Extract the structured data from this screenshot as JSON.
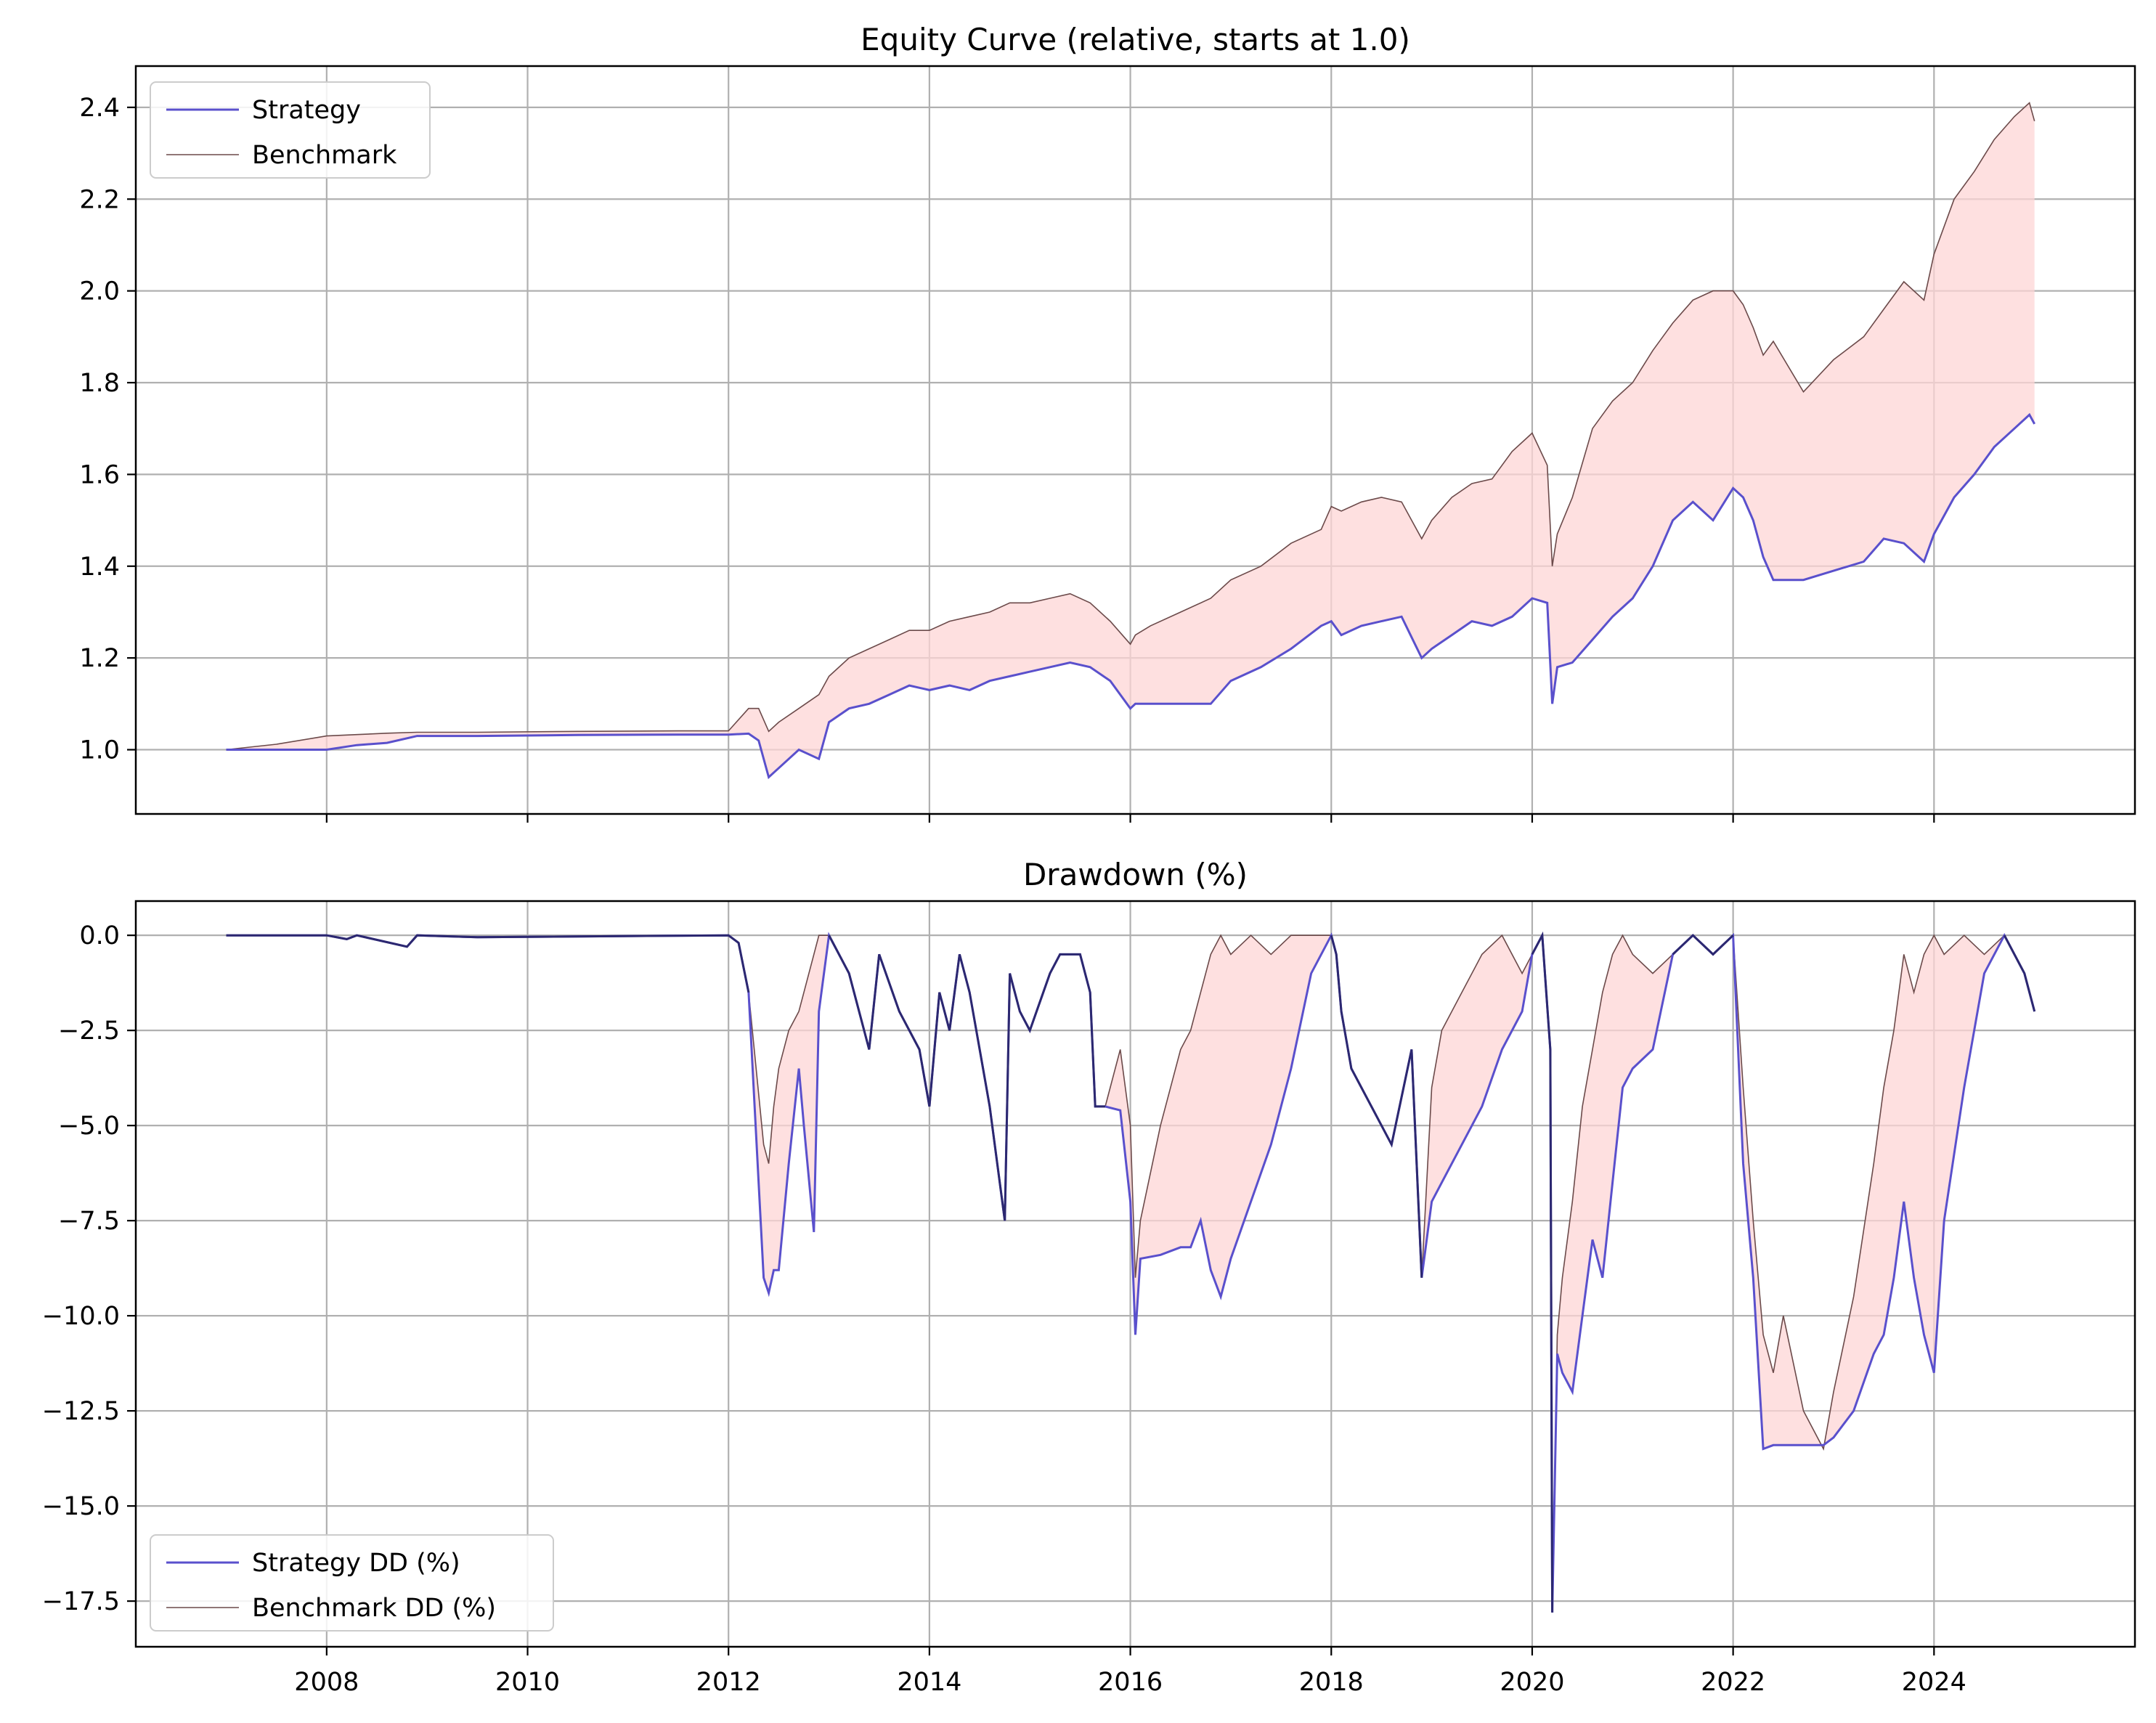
{
  "chart_data": [
    {
      "type": "line",
      "title": "Equity Curve (relative, starts at 1.0)",
      "xlabel": "",
      "ylabel": "",
      "xlim": [
        2006.1,
        2026.0
      ],
      "ylim": [
        0.86,
        2.49
      ],
      "x_ticks": [
        2008,
        2010,
        2012,
        2014,
        2016,
        2018,
        2020,
        2022,
        2024
      ],
      "y_ticks": [
        1.0,
        1.2,
        1.4,
        1.6,
        1.8,
        2.0,
        2.2,
        2.4
      ],
      "y_tick_labels": [
        "1.0",
        "1.2",
        "1.4",
        "1.6",
        "1.8",
        "2.0",
        "2.2",
        "2.4"
      ],
      "grid": true,
      "legend": "upper left",
      "fill_between": {
        "color": "#fdd5d6"
      },
      "series": [
        {
          "name": "Strategy",
          "color": "#5a50cc",
          "x": [
            2007.0,
            2007.5,
            2008.0,
            2008.3,
            2008.6,
            2008.9,
            2009.5,
            2010.5,
            2011.5,
            2012.0,
            2012.2,
            2012.3,
            2012.4,
            2012.5,
            2012.7,
            2012.9,
            2013.0,
            2013.2,
            2013.4,
            2013.6,
            2013.8,
            2014.0,
            2014.2,
            2014.4,
            2014.6,
            2014.8,
            2015.0,
            2015.2,
            2015.4,
            2015.6,
            2015.8,
            2016.0,
            2016.05,
            2016.2,
            2016.5,
            2016.8,
            2017.0,
            2017.3,
            2017.6,
            2017.9,
            2018.0,
            2018.1,
            2018.3,
            2018.5,
            2018.7,
            2018.9,
            2019.0,
            2019.2,
            2019.4,
            2019.6,
            2019.8,
            2020.0,
            2020.15,
            2020.2,
            2020.25,
            2020.4,
            2020.6,
            2020.8,
            2021.0,
            2021.2,
            2021.4,
            2021.6,
            2021.8,
            2022.0,
            2022.1,
            2022.2,
            2022.3,
            2022.4,
            2022.7,
            2023.0,
            2023.3,
            2023.5,
            2023.7,
            2023.9,
            2024.0,
            2024.2,
            2024.4,
            2024.6,
            2024.8,
            2024.95,
            2025.0
          ],
          "y": [
            1.0,
            1.0,
            1.0,
            1.01,
            1.015,
            1.03,
            1.03,
            1.032,
            1.033,
            1.033,
            1.035,
            1.02,
            0.94,
            0.96,
            1.0,
            0.98,
            1.06,
            1.09,
            1.1,
            1.12,
            1.14,
            1.13,
            1.14,
            1.13,
            1.15,
            1.16,
            1.17,
            1.18,
            1.19,
            1.18,
            1.15,
            1.09,
            1.1,
            1.1,
            1.1,
            1.1,
            1.15,
            1.18,
            1.22,
            1.27,
            1.28,
            1.25,
            1.27,
            1.28,
            1.29,
            1.2,
            1.22,
            1.25,
            1.28,
            1.27,
            1.29,
            1.33,
            1.32,
            1.1,
            1.18,
            1.19,
            1.24,
            1.29,
            1.33,
            1.4,
            1.5,
            1.54,
            1.5,
            1.57,
            1.55,
            1.5,
            1.42,
            1.37,
            1.37,
            1.39,
            1.41,
            1.46,
            1.45,
            1.41,
            1.47,
            1.55,
            1.6,
            1.66,
            1.7,
            1.73,
            1.71
          ]
        },
        {
          "name": "Benchmark",
          "color": "#6b4a4a",
          "x": [
            2007.0,
            2007.5,
            2008.0,
            2008.3,
            2008.6,
            2008.9,
            2009.5,
            2010.5,
            2011.5,
            2012.0,
            2012.2,
            2012.3,
            2012.4,
            2012.5,
            2012.7,
            2012.9,
            2013.0,
            2013.2,
            2013.4,
            2013.6,
            2013.8,
            2014.0,
            2014.2,
            2014.4,
            2014.6,
            2014.8,
            2015.0,
            2015.2,
            2015.4,
            2015.6,
            2015.8,
            2016.0,
            2016.05,
            2016.2,
            2016.5,
            2016.8,
            2017.0,
            2017.3,
            2017.6,
            2017.9,
            2018.0,
            2018.1,
            2018.3,
            2018.5,
            2018.7,
            2018.9,
            2019.0,
            2019.2,
            2019.4,
            2019.6,
            2019.8,
            2020.0,
            2020.15,
            2020.2,
            2020.25,
            2020.4,
            2020.6,
            2020.8,
            2021.0,
            2021.2,
            2021.4,
            2021.6,
            2021.8,
            2022.0,
            2022.1,
            2022.2,
            2022.3,
            2022.4,
            2022.7,
            2023.0,
            2023.3,
            2023.5,
            2023.7,
            2023.9,
            2024.0,
            2024.2,
            2024.4,
            2024.6,
            2024.8,
            2024.95,
            2025.0
          ],
          "y": [
            1.0,
            1.012,
            1.03,
            1.033,
            1.036,
            1.038,
            1.038,
            1.04,
            1.041,
            1.041,
            1.09,
            1.09,
            1.04,
            1.06,
            1.09,
            1.12,
            1.16,
            1.2,
            1.22,
            1.24,
            1.26,
            1.26,
            1.28,
            1.29,
            1.3,
            1.32,
            1.32,
            1.33,
            1.34,
            1.32,
            1.28,
            1.23,
            1.25,
            1.27,
            1.3,
            1.33,
            1.37,
            1.4,
            1.45,
            1.48,
            1.53,
            1.52,
            1.54,
            1.55,
            1.54,
            1.46,
            1.5,
            1.55,
            1.58,
            1.59,
            1.65,
            1.69,
            1.62,
            1.4,
            1.47,
            1.55,
            1.7,
            1.76,
            1.8,
            1.87,
            1.93,
            1.98,
            2.0,
            2.0,
            1.97,
            1.92,
            1.86,
            1.89,
            1.78,
            1.85,
            1.9,
            1.96,
            2.02,
            1.98,
            2.08,
            2.2,
            2.26,
            2.33,
            2.38,
            2.41,
            2.37
          ]
        }
      ]
    },
    {
      "type": "line",
      "title": "Drawdown (%)",
      "xlabel": "",
      "ylabel": "",
      "xlim": [
        2006.1,
        2026.0
      ],
      "ylim": [
        -18.7,
        0.9
      ],
      "x_ticks": [
        2008,
        2010,
        2012,
        2014,
        2016,
        2018,
        2020,
        2022,
        2024
      ],
      "x_tick_labels": [
        "2008",
        "2010",
        "2012",
        "2014",
        "2016",
        "2018",
        "2020",
        "2022",
        "2024"
      ],
      "y_ticks": [
        0.0,
        -2.5,
        -5.0,
        -7.5,
        -10.0,
        -12.5,
        -15.0,
        -17.5
      ],
      "y_tick_labels": [
        "0.0",
        "−2.5",
        "−5.0",
        "−7.5",
        "−10.0",
        "−12.5",
        "−15.0",
        "−17.5"
      ],
      "grid": true,
      "legend": "lower left",
      "fill_between": {
        "color": "#fdd5d6"
      },
      "overlap_color": "#2c2870",
      "series": [
        {
          "name": "Strategy DD (%)",
          "color": "#5a50cc",
          "x": [
            2007.0,
            2008.0,
            2008.2,
            2008.3,
            2008.8,
            2008.9,
            2009.5,
            2012.0,
            2012.1,
            2012.2,
            2012.35,
            2012.4,
            2012.45,
            2012.5,
            2012.6,
            2012.7,
            2012.75,
            2012.85,
            2012.9,
            2013.0,
            2013.2,
            2013.4,
            2013.5,
            2013.7,
            2013.9,
            2014.0,
            2014.1,
            2014.2,
            2014.3,
            2014.4,
            2014.5,
            2014.6,
            2014.75,
            2014.8,
            2014.9,
            2015.0,
            2015.2,
            2015.3,
            2015.5,
            2015.6,
            2015.65,
            2015.75,
            2015.9,
            2016.0,
            2016.05,
            2016.1,
            2016.3,
            2016.5,
            2016.6,
            2016.7,
            2016.8,
            2016.9,
            2017.0,
            2017.2,
            2017.4,
            2017.6,
            2017.8,
            2018.0,
            2018.05,
            2018.1,
            2018.2,
            2018.4,
            2018.6,
            2018.8,
            2018.9,
            2019.0,
            2019.1,
            2019.3,
            2019.5,
            2019.7,
            2019.9,
            2020.0,
            2020.1,
            2020.18,
            2020.2,
            2020.25,
            2020.3,
            2020.4,
            2020.5,
            2020.6,
            2020.7,
            2020.8,
            2020.9,
            2021.0,
            2021.2,
            2021.4,
            2021.6,
            2021.8,
            2022.0,
            2022.1,
            2022.2,
            2022.3,
            2022.4,
            2022.5,
            2022.7,
            2022.9,
            2023.0,
            2023.2,
            2023.4,
            2023.5,
            2023.6,
            2023.7,
            2023.8,
            2023.9,
            2024.0,
            2024.1,
            2024.3,
            2024.5,
            2024.7,
            2024.9,
            2025.0
          ],
          "y": [
            0.0,
            0.0,
            -0.1,
            0.0,
            -0.3,
            0.0,
            -0.05,
            0.0,
            -0.2,
            -1.5,
            -9.0,
            -9.4,
            -8.8,
            -8.8,
            -6.0,
            -3.5,
            -5.0,
            -7.8,
            -2.0,
            0.0,
            -1.0,
            -3.0,
            -0.5,
            -2.0,
            -3.0,
            -4.5,
            -1.5,
            -2.5,
            -0.5,
            -1.5,
            -3.0,
            -4.5,
            -7.5,
            -1.0,
            -2.0,
            -2.5,
            -1.0,
            -0.5,
            -0.5,
            -1.5,
            -4.5,
            -4.5,
            -4.6,
            -7.0,
            -10.5,
            -8.5,
            -8.4,
            -8.2,
            -8.2,
            -7.5,
            -8.8,
            -9.5,
            -8.5,
            -7.0,
            -5.5,
            -3.5,
            -1.0,
            0.0,
            -0.5,
            -2.0,
            -3.5,
            -4.5,
            -5.5,
            -3.0,
            -9.0,
            -7.0,
            -6.5,
            -5.5,
            -4.5,
            -3.0,
            -2.0,
            -0.5,
            0.0,
            -3.0,
            -17.8,
            -11.0,
            -11.5,
            -12.0,
            -10.0,
            -8.0,
            -9.0,
            -6.5,
            -4.0,
            -3.5,
            -3.0,
            -0.5,
            0.0,
            -0.5,
            0.0,
            -6.0,
            -9.0,
            -13.5,
            -13.4,
            -13.4,
            -13.4,
            -13.4,
            -13.2,
            -12.5,
            -11.0,
            -10.5,
            -9.0,
            -7.0,
            -9.0,
            -10.5,
            -11.5,
            -7.5,
            -4.0,
            -1.0,
            0.0,
            -1.0,
            -2.0
          ]
        },
        {
          "name": "Benchmark DD (%)",
          "color": "#6b4a4a",
          "x": [
            2007.0,
            2008.0,
            2008.2,
            2008.3,
            2008.8,
            2008.9,
            2009.5,
            2012.0,
            2012.1,
            2012.2,
            2012.35,
            2012.4,
            2012.45,
            2012.5,
            2012.6,
            2012.7,
            2012.75,
            2012.85,
            2012.9,
            2013.0,
            2013.2,
            2013.4,
            2013.5,
            2013.7,
            2013.9,
            2014.0,
            2014.1,
            2014.2,
            2014.3,
            2014.4,
            2014.5,
            2014.6,
            2014.75,
            2014.8,
            2014.9,
            2015.0,
            2015.2,
            2015.3,
            2015.5,
            2015.6,
            2015.65,
            2015.75,
            2015.9,
            2016.0,
            2016.05,
            2016.1,
            2016.3,
            2016.5,
            2016.6,
            2016.7,
            2016.8,
            2016.9,
            2017.0,
            2017.2,
            2017.4,
            2017.6,
            2017.8,
            2018.0,
            2018.05,
            2018.1,
            2018.2,
            2018.4,
            2018.6,
            2018.8,
            2018.9,
            2019.0,
            2019.1,
            2019.3,
            2019.5,
            2019.7,
            2019.9,
            2020.0,
            2020.1,
            2020.18,
            2020.2,
            2020.25,
            2020.3,
            2020.4,
            2020.5,
            2020.6,
            2020.7,
            2020.8,
            2020.9,
            2021.0,
            2021.2,
            2021.4,
            2021.6,
            2021.8,
            2022.0,
            2022.1,
            2022.2,
            2022.3,
            2022.4,
            2022.5,
            2022.7,
            2022.9,
            2023.0,
            2023.2,
            2023.4,
            2023.5,
            2023.6,
            2023.7,
            2023.8,
            2023.9,
            2024.0,
            2024.1,
            2024.3,
            2024.5,
            2024.7,
            2024.9,
            2025.0
          ],
          "y": [
            0.0,
            0.0,
            -0.1,
            0.0,
            -0.3,
            0.0,
            -0.05,
            0.0,
            -0.2,
            -1.5,
            -5.5,
            -6.0,
            -4.5,
            -3.5,
            -2.5,
            -2.0,
            -1.5,
            -0.5,
            0.0,
            0.0,
            -1.0,
            -3.0,
            -0.5,
            -2.0,
            -3.0,
            -4.5,
            -1.5,
            -2.5,
            -0.5,
            -1.5,
            -3.0,
            -4.5,
            -7.5,
            -1.0,
            -2.0,
            -2.5,
            -1.0,
            -0.5,
            -0.5,
            -1.5,
            -4.5,
            -4.5,
            -3.0,
            -5.0,
            -9.0,
            -7.5,
            -5.0,
            -3.0,
            -2.5,
            -1.5,
            -0.5,
            0.0,
            -0.5,
            0.0,
            -0.5,
            0.0,
            0.0,
            0.0,
            -0.5,
            -2.0,
            -3.5,
            -4.5,
            -5.5,
            -3.0,
            -9.0,
            -4.0,
            -2.5,
            -1.5,
            -0.5,
            0.0,
            -1.0,
            -0.5,
            0.0,
            -3.0,
            -17.8,
            -10.5,
            -9.0,
            -7.0,
            -4.5,
            -3.0,
            -1.5,
            -0.5,
            0.0,
            -0.5,
            -1.0,
            -0.5,
            0.0,
            -0.5,
            0.0,
            -4.0,
            -7.5,
            -10.5,
            -11.5,
            -10.0,
            -12.5,
            -13.5,
            -12.0,
            -9.5,
            -6.0,
            -4.0,
            -2.5,
            -0.5,
            -1.5,
            -0.5,
            0.0,
            -0.5,
            0.0,
            -0.5,
            0.0,
            -1.0,
            -2.0
          ]
        }
      ]
    }
  ]
}
